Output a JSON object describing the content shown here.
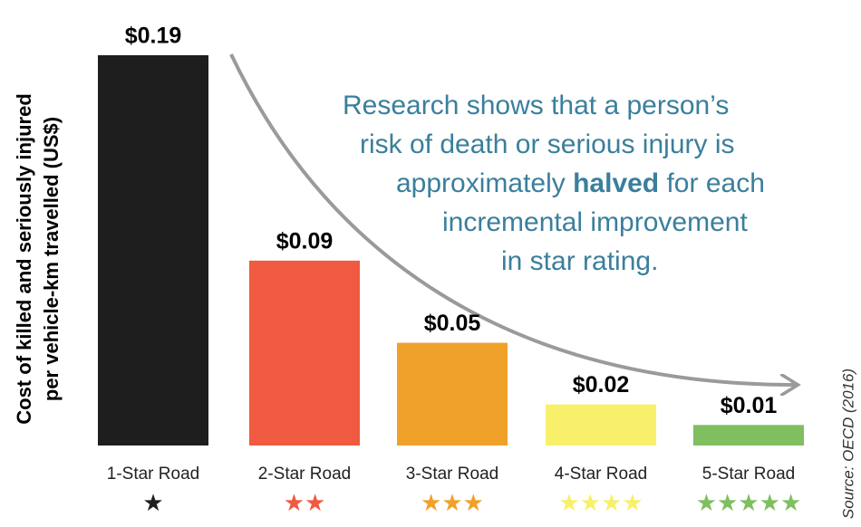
{
  "chart_data": {
    "type": "bar",
    "ylabel": [
      "Cost of killed and seriously injured",
      "per vehicle-km travelled (US$)"
    ],
    "categories": [
      "1-Star Road",
      "2-Star Road",
      "3-Star Road",
      "4-Star Road",
      "5-Star Road"
    ],
    "stars": [
      "★",
      "★★",
      "★★★",
      "★★★★",
      "★★★★★"
    ],
    "values": [
      0.19,
      0.09,
      0.05,
      0.02,
      0.01
    ],
    "value_labels": [
      "$0.19",
      "$0.09",
      "$0.05",
      "$0.02",
      "$0.01"
    ],
    "colors": [
      "#1e1e1e",
      "#ef5a40",
      "#f0a12a",
      "#f8f06a",
      "#7fbf5f"
    ],
    "annotation": [
      "Research shows that a person’s",
      "risk of death or serious injury is",
      [
        "approximately ",
        "halved",
        " for each"
      ],
      "incremental improvement",
      "in star rating."
    ],
    "source": "Source: OECD (2016)"
  }
}
